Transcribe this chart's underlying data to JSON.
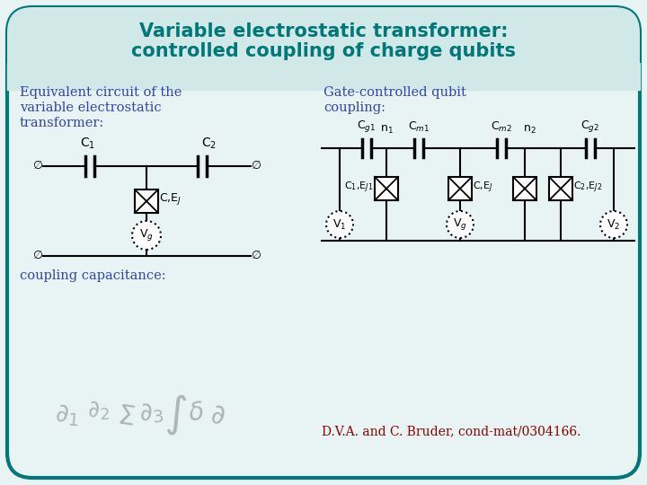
{
  "title_line1": "Variable electrostatic transformer:",
  "title_line2": "controlled coupling of charge qubits",
  "title_color": "#007878",
  "bg_color": "#e8f4f4",
  "header_color": "#d0e8e8",
  "border_color": "#007878",
  "left_label_line1": "Equivalent circuit of the",
  "left_label_line2": "variable electrostatic",
  "left_label_line3": "transformer:",
  "right_label_line1": "Gate-controlled qubit",
  "right_label_line2": "coupling:",
  "label_color": "#3344aa",
  "bottom_label": "coupling capacitance:",
  "citation": "D.V.A. and C. Bruder, cond-mat/0304166.",
  "citation_color": "#8b0000",
  "circuit_color": "#000000"
}
